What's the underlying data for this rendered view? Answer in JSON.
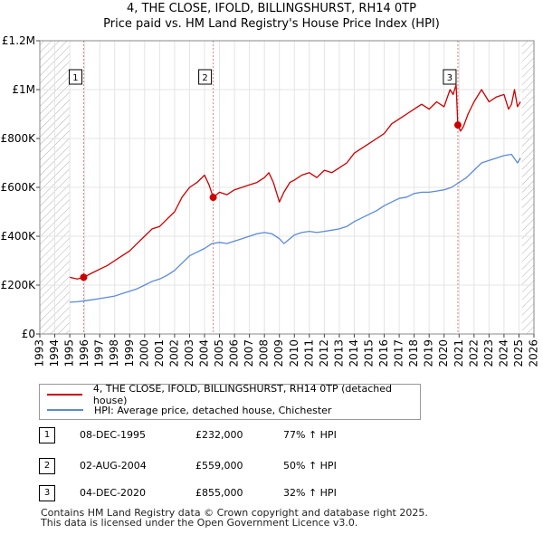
{
  "title_line1": "4, THE CLOSE, IFOLD, BILLINGSHURST, RH14 0TP",
  "title_line2": "Price paid vs. HM Land Registry's House Price Index (HPI)",
  "colors": {
    "property": "#cc0000",
    "hpi": "#5b8bd6",
    "marker_line": "#e08080",
    "hatch": "#b0b0b0",
    "grid": "#e4e4e4"
  },
  "legend": {
    "property_label": "4, THE CLOSE, IFOLD, BILLINGSHURST, RH14 0TP (detached house)",
    "hpi_label": "HPI: Average price, detached house, Chichester"
  },
  "transactions": [
    {
      "num": "1",
      "date": "08-DEC-1995",
      "price": "£232,000",
      "hpi_change": "77% ↑ HPI"
    },
    {
      "num": "2",
      "date": "02-AUG-2004",
      "price": "£559,000",
      "hpi_change": "50% ↑ HPI"
    },
    {
      "num": "3",
      "date": "04-DEC-2020",
      "price": "£855,000",
      "hpi_change": "32% ↑ HPI"
    }
  ],
  "footer_line1": "Contains HM Land Registry data © Crown copyright and database right 2025.",
  "footer_line2": "This data is licensed under the Open Government Licence v3.0.",
  "chart_data": {
    "type": "line",
    "xlim": [
      1993,
      2026
    ],
    "ylim": [
      0,
      1200000
    ],
    "y_ticks": [
      0,
      200000,
      400000,
      600000,
      800000,
      1000000,
      1200000
    ],
    "y_tick_labels": [
      "£0",
      "£200K",
      "£400K",
      "£600K",
      "£800K",
      "£1M",
      "£1.2M"
    ],
    "x_ticks": [
      1993,
      1994,
      1995,
      1996,
      1997,
      1998,
      1999,
      2000,
      2001,
      2002,
      2003,
      2004,
      2005,
      2006,
      2007,
      2008,
      2009,
      2010,
      2011,
      2012,
      2013,
      2014,
      2015,
      2016,
      2017,
      2018,
      2019,
      2020,
      2021,
      2022,
      2023,
      2024,
      2025,
      2026
    ],
    "hatched_ranges": [
      [
        1993,
        1995.0
      ],
      [
        2025.2,
        2026
      ]
    ],
    "sale_markers": [
      {
        "label": "1",
        "x": 1995.93,
        "y": 232000
      },
      {
        "label": "2",
        "x": 2004.58,
        "y": 559000
      },
      {
        "label": "3",
        "x": 2020.92,
        "y": 855000
      }
    ],
    "series": [
      {
        "name": "4, THE CLOSE, IFOLD, BILLINGSHURST, RH14 0TP (detached house)",
        "x": [
          1995.0,
          1995.5,
          1995.93,
          1996.5,
          1997,
          1997.5,
          1998,
          1998.5,
          1999,
          1999.5,
          2000,
          2000.5,
          2001,
          2001.5,
          2002,
          2002.5,
          2003,
          2003.5,
          2004,
          2004.3,
          2004.58,
          2005,
          2005.5,
          2006,
          2006.5,
          2007,
          2007.5,
          2008,
          2008.3,
          2008.6,
          2009,
          2009.3,
          2009.7,
          2010,
          2010.5,
          2011,
          2011.5,
          2012,
          2012.5,
          2013,
          2013.5,
          2014,
          2014.5,
          2015,
          2015.5,
          2016,
          2016.5,
          2017,
          2017.5,
          2018,
          2018.5,
          2019,
          2019.5,
          2020,
          2020.4,
          2020.6,
          2020.8,
          2020.92,
          2021.1,
          2021.3,
          2021.6,
          2022,
          2022.5,
          2023,
          2023.5,
          2024,
          2024.3,
          2024.5,
          2024.7,
          2024.9,
          2025.1
        ],
        "y": [
          232000,
          225000,
          232000,
          250000,
          265000,
          280000,
          300000,
          320000,
          340000,
          370000,
          400000,
          430000,
          440000,
          470000,
          500000,
          560000,
          600000,
          620000,
          650000,
          610000,
          559000,
          580000,
          570000,
          590000,
          600000,
          610000,
          620000,
          640000,
          660000,
          620000,
          540000,
          580000,
          620000,
          630000,
          650000,
          660000,
          640000,
          670000,
          660000,
          680000,
          700000,
          740000,
          760000,
          780000,
          800000,
          820000,
          860000,
          880000,
          900000,
          920000,
          940000,
          920000,
          950000,
          930000,
          1000000,
          980000,
          1020000,
          855000,
          830000,
          850000,
          900000,
          950000,
          1000000,
          950000,
          970000,
          980000,
          920000,
          940000,
          1000000,
          930000,
          950000
        ]
      },
      {
        "name": "HPI: Average price, detached house, Chichester",
        "x": [
          1995.0,
          1995.5,
          1996,
          1996.5,
          1997,
          1997.5,
          1998,
          1998.5,
          1999,
          1999.5,
          2000,
          2000.5,
          2001,
          2001.5,
          2002,
          2002.5,
          2003,
          2003.5,
          2004,
          2004.5,
          2005,
          2005.5,
          2006,
          2006.5,
          2007,
          2007.5,
          2008,
          2008.5,
          2009,
          2009.3,
          2009.7,
          2010,
          2010.5,
          2011,
          2011.5,
          2012,
          2012.5,
          2013,
          2013.5,
          2014,
          2014.5,
          2015,
          2015.5,
          2016,
          2016.5,
          2017,
          2017.5,
          2018,
          2018.5,
          2019,
          2019.5,
          2020,
          2020.5,
          2021,
          2021.5,
          2022,
          2022.5,
          2023,
          2023.5,
          2024,
          2024.5,
          2024.9,
          2025.1
        ],
        "y": [
          130000,
          132000,
          136000,
          140000,
          145000,
          150000,
          155000,
          165000,
          175000,
          185000,
          200000,
          215000,
          225000,
          240000,
          260000,
          290000,
          320000,
          335000,
          350000,
          370000,
          375000,
          370000,
          380000,
          390000,
          400000,
          410000,
          415000,
          410000,
          390000,
          370000,
          390000,
          405000,
          415000,
          420000,
          415000,
          420000,
          425000,
          430000,
          440000,
          460000,
          475000,
          490000,
          505000,
          525000,
          540000,
          555000,
          560000,
          575000,
          580000,
          580000,
          585000,
          590000,
          600000,
          620000,
          640000,
          670000,
          700000,
          710000,
          720000,
          730000,
          735000,
          700000,
          720000
        ]
      }
    ]
  }
}
